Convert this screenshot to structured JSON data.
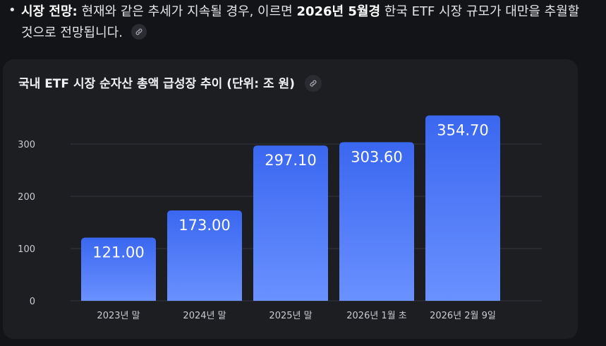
{
  "bullet": {
    "label": "시장 전망:",
    "text_a": " 현재와 같은 추세가 지속될 경우, 이르면 ",
    "highlight": "2026년 5월경",
    "text_b": " 한국 ETF 시장 규모가 대만을 추월할 것으로 전망됩니다."
  },
  "card": {
    "title": "국내 ETF 시장 순자산 총액 급성장 추이 (단위: 조 원)"
  },
  "colors": {
    "bar_top": "#3a67f0",
    "bar_bottom": "#6a91ff",
    "grid": "#34363c",
    "background": "#131417",
    "card": "#1d1e22"
  },
  "icons": {
    "link": "link-icon"
  },
  "chart_data": {
    "type": "bar",
    "title": "국내 ETF 시장 순자산 총액 급성장 추이 (단위: 조 원)",
    "categories": [
      "2023년 말",
      "2024년 말",
      "2025년 말",
      "2026년 1월 초",
      "2026년 2월 9일"
    ],
    "values": [
      121.0,
      173.0,
      297.1,
      303.6,
      354.7
    ],
    "value_labels": [
      "121.00",
      "173.00",
      "297.10",
      "303.60",
      "354.70"
    ],
    "yticks": [
      0,
      100,
      200,
      300
    ],
    "ytick_labels": [
      "0",
      "100",
      "200",
      "300"
    ],
    "ylim": [
      0,
      354.7
    ],
    "grid": true,
    "legend": "none",
    "xlabel": "",
    "ylabel": ""
  }
}
